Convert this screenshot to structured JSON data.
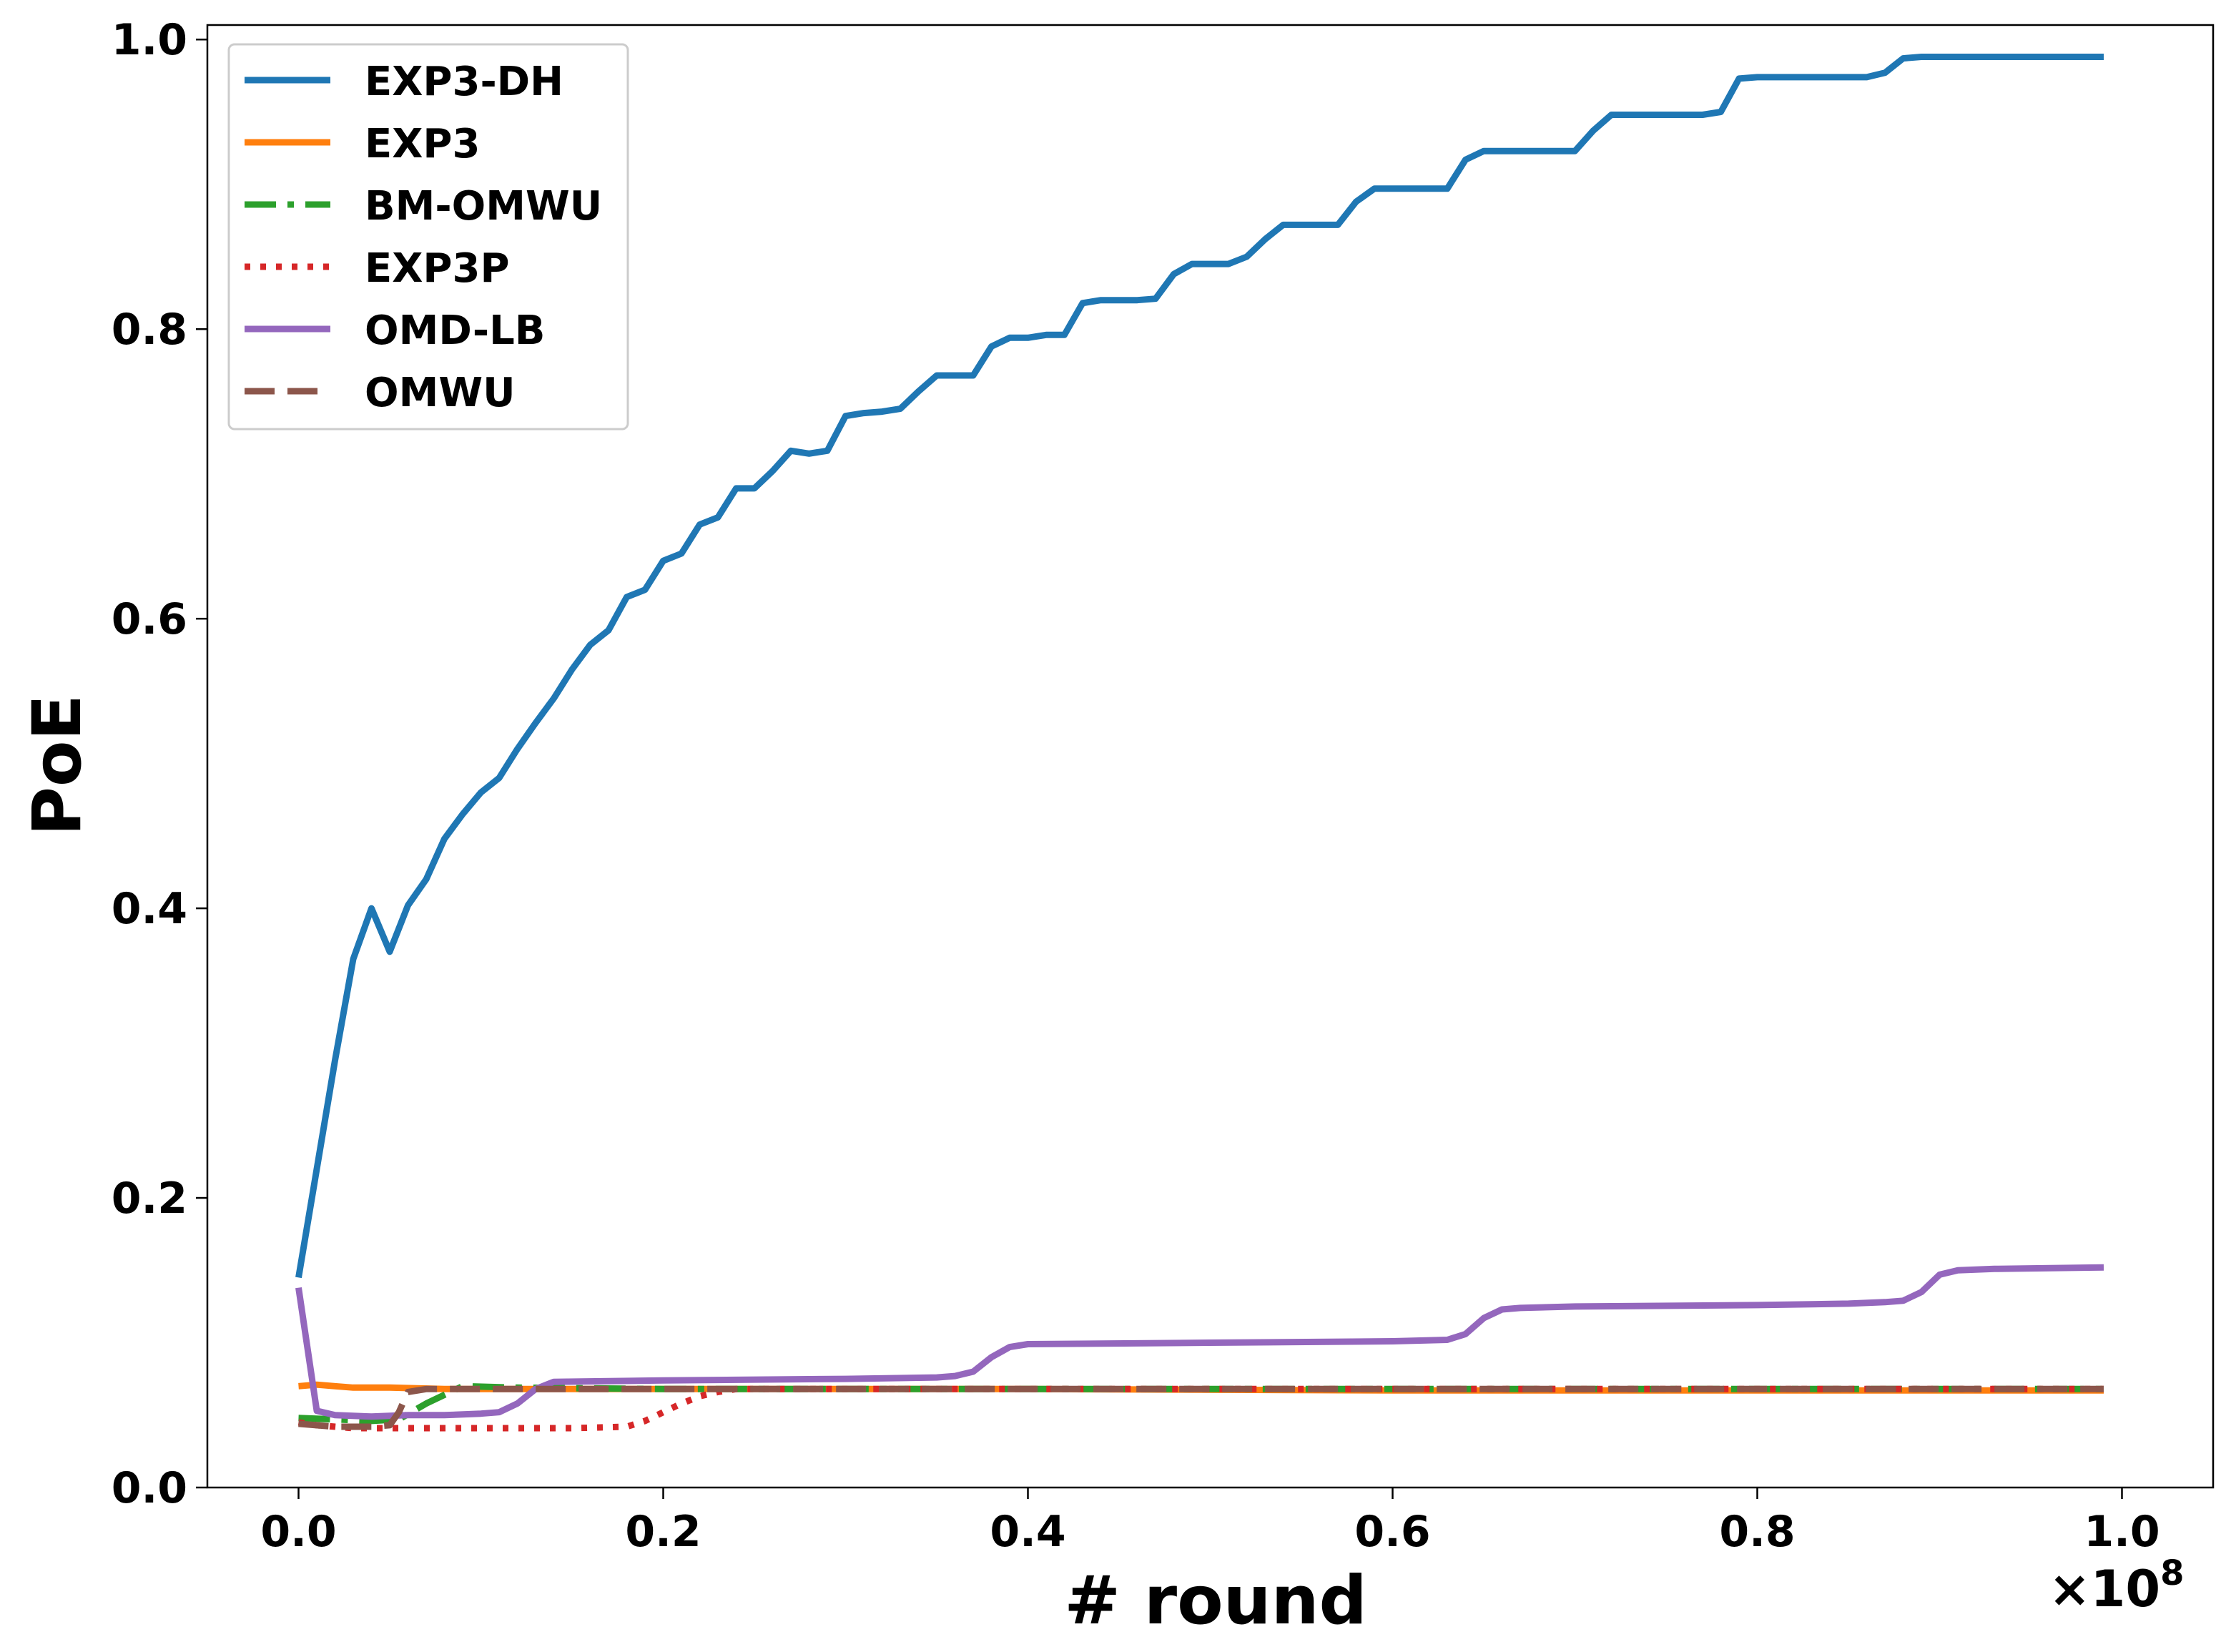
{
  "chart_data": {
    "type": "line",
    "title": "",
    "xlabel": "# round",
    "ylabel": "PoE",
    "x_offset_label": "×10",
    "x_offset_exponent": "8",
    "xlim": [
      -0.05,
      1.05
    ],
    "ylim": [
      0.0,
      1.01
    ],
    "x_ticks": [
      0.0,
      0.2,
      0.4,
      0.6,
      0.8,
      1.0
    ],
    "x_tick_labels": [
      "0.0",
      "0.2",
      "0.4",
      "0.6",
      "0.8",
      "1.0"
    ],
    "y_ticks": [
      0.0,
      0.2,
      0.4,
      0.6,
      0.8,
      1.0
    ],
    "y_tick_labels": [
      "0.0",
      "0.2",
      "0.4",
      "0.6",
      "0.8",
      "1.0"
    ],
    "grid": false,
    "legend_position": "top-left",
    "series": [
      {
        "name": "EXP3-DH",
        "color": "#1f77b4",
        "dash": "solid",
        "points": [
          [
            0.0,
            0.145
          ],
          [
            0.01,
            0.22
          ],
          [
            0.02,
            0.295
          ],
          [
            0.03,
            0.365
          ],
          [
            0.04,
            0.4
          ],
          [
            0.05,
            0.37
          ],
          [
            0.06,
            0.402
          ],
          [
            0.07,
            0.42
          ],
          [
            0.08,
            0.448
          ],
          [
            0.09,
            0.465
          ],
          [
            0.1,
            0.48
          ],
          [
            0.11,
            0.49
          ],
          [
            0.12,
            0.51
          ],
          [
            0.13,
            0.528
          ],
          [
            0.14,
            0.545
          ],
          [
            0.15,
            0.565
          ],
          [
            0.16,
            0.582
          ],
          [
            0.17,
            0.592
          ],
          [
            0.18,
            0.615
          ],
          [
            0.19,
            0.62
          ],
          [
            0.2,
            0.64
          ],
          [
            0.21,
            0.645
          ],
          [
            0.22,
            0.665
          ],
          [
            0.23,
            0.67
          ],
          [
            0.24,
            0.69
          ],
          [
            0.25,
            0.69
          ],
          [
            0.26,
            0.702
          ],
          [
            0.27,
            0.716
          ],
          [
            0.28,
            0.714
          ],
          [
            0.29,
            0.716
          ],
          [
            0.3,
            0.74
          ],
          [
            0.31,
            0.742
          ],
          [
            0.32,
            0.743
          ],
          [
            0.33,
            0.745
          ],
          [
            0.34,
            0.757
          ],
          [
            0.35,
            0.768
          ],
          [
            0.36,
            0.768
          ],
          [
            0.37,
            0.768
          ],
          [
            0.38,
            0.788
          ],
          [
            0.39,
            0.794
          ],
          [
            0.4,
            0.794
          ],
          [
            0.41,
            0.796
          ],
          [
            0.42,
            0.796
          ],
          [
            0.43,
            0.818
          ],
          [
            0.44,
            0.82
          ],
          [
            0.45,
            0.82
          ],
          [
            0.46,
            0.82
          ],
          [
            0.47,
            0.821
          ],
          [
            0.48,
            0.838
          ],
          [
            0.49,
            0.845
          ],
          [
            0.5,
            0.845
          ],
          [
            0.51,
            0.845
          ],
          [
            0.52,
            0.85
          ],
          [
            0.53,
            0.862
          ],
          [
            0.54,
            0.872
          ],
          [
            0.55,
            0.872
          ],
          [
            0.56,
            0.872
          ],
          [
            0.57,
            0.872
          ],
          [
            0.58,
            0.888
          ],
          [
            0.59,
            0.897
          ],
          [
            0.6,
            0.897
          ],
          [
            0.61,
            0.897
          ],
          [
            0.62,
            0.897
          ],
          [
            0.63,
            0.897
          ],
          [
            0.64,
            0.917
          ],
          [
            0.65,
            0.923
          ],
          [
            0.66,
            0.923
          ],
          [
            0.67,
            0.923
          ],
          [
            0.68,
            0.923
          ],
          [
            0.69,
            0.923
          ],
          [
            0.7,
            0.923
          ],
          [
            0.71,
            0.937
          ],
          [
            0.72,
            0.948
          ],
          [
            0.73,
            0.948
          ],
          [
            0.74,
            0.948
          ],
          [
            0.75,
            0.948
          ],
          [
            0.76,
            0.948
          ],
          [
            0.77,
            0.948
          ],
          [
            0.78,
            0.95
          ],
          [
            0.79,
            0.973
          ],
          [
            0.8,
            0.974
          ],
          [
            0.81,
            0.974
          ],
          [
            0.82,
            0.974
          ],
          [
            0.83,
            0.974
          ],
          [
            0.84,
            0.974
          ],
          [
            0.85,
            0.974
          ],
          [
            0.86,
            0.974
          ],
          [
            0.87,
            0.977
          ],
          [
            0.88,
            0.987
          ],
          [
            0.89,
            0.988
          ],
          [
            0.9,
            0.988
          ],
          [
            0.93,
            0.988
          ],
          [
            0.96,
            0.988
          ],
          [
            0.99,
            0.988
          ]
        ]
      },
      {
        "name": "EXP3",
        "color": "#ff7f0e",
        "dash": "solid",
        "points": [
          [
            0.0,
            0.07
          ],
          [
            0.01,
            0.071
          ],
          [
            0.02,
            0.07
          ],
          [
            0.03,
            0.069
          ],
          [
            0.05,
            0.069
          ],
          [
            0.08,
            0.068
          ],
          [
            0.12,
            0.068
          ],
          [
            0.2,
            0.068
          ],
          [
            0.4,
            0.068
          ],
          [
            0.6,
            0.067
          ],
          [
            0.8,
            0.067
          ],
          [
            0.99,
            0.067
          ]
        ]
      },
      {
        "name": "BM-OMWU",
        "color": "#2ca02c",
        "dash": "dashdot",
        "points": [
          [
            0.0,
            0.048
          ],
          [
            0.02,
            0.047
          ],
          [
            0.04,
            0.046
          ],
          [
            0.055,
            0.047
          ],
          [
            0.07,
            0.058
          ],
          [
            0.09,
            0.07
          ],
          [
            0.12,
            0.069
          ],
          [
            0.2,
            0.068
          ],
          [
            0.4,
            0.068
          ],
          [
            0.6,
            0.068
          ],
          [
            0.8,
            0.068
          ],
          [
            0.99,
            0.068
          ]
        ]
      },
      {
        "name": "EXP3P",
        "color": "#d62728",
        "dash": "dotted",
        "points": [
          [
            0.0,
            0.045
          ],
          [
            0.01,
            0.043
          ],
          [
            0.03,
            0.041
          ],
          [
            0.05,
            0.041
          ],
          [
            0.1,
            0.041
          ],
          [
            0.15,
            0.041
          ],
          [
            0.18,
            0.042
          ],
          [
            0.19,
            0.046
          ],
          [
            0.2,
            0.052
          ],
          [
            0.21,
            0.058
          ],
          [
            0.22,
            0.063
          ],
          [
            0.23,
            0.066
          ],
          [
            0.24,
            0.068
          ],
          [
            0.3,
            0.068
          ],
          [
            0.5,
            0.068
          ],
          [
            0.7,
            0.068
          ],
          [
            0.9,
            0.068
          ],
          [
            0.99,
            0.068
          ]
        ]
      },
      {
        "name": "OMD-LB",
        "color": "#9467bd",
        "dash": "solid",
        "points": [
          [
            0.0,
            0.138
          ],
          [
            0.01,
            0.053
          ],
          [
            0.02,
            0.05
          ],
          [
            0.04,
            0.049
          ],
          [
            0.06,
            0.05
          ],
          [
            0.08,
            0.05
          ],
          [
            0.1,
            0.051
          ],
          [
            0.11,
            0.052
          ],
          [
            0.12,
            0.058
          ],
          [
            0.13,
            0.068
          ],
          [
            0.14,
            0.073
          ],
          [
            0.2,
            0.074
          ],
          [
            0.3,
            0.075
          ],
          [
            0.35,
            0.076
          ],
          [
            0.36,
            0.077
          ],
          [
            0.37,
            0.08
          ],
          [
            0.38,
            0.09
          ],
          [
            0.39,
            0.097
          ],
          [
            0.4,
            0.099
          ],
          [
            0.5,
            0.1
          ],
          [
            0.6,
            0.101
          ],
          [
            0.63,
            0.102
          ],
          [
            0.64,
            0.106
          ],
          [
            0.65,
            0.117
          ],
          [
            0.66,
            0.123
          ],
          [
            0.67,
            0.124
          ],
          [
            0.7,
            0.125
          ],
          [
            0.8,
            0.126
          ],
          [
            0.85,
            0.127
          ],
          [
            0.87,
            0.128
          ],
          [
            0.88,
            0.129
          ],
          [
            0.89,
            0.135
          ],
          [
            0.9,
            0.147
          ],
          [
            0.91,
            0.15
          ],
          [
            0.93,
            0.151
          ],
          [
            0.99,
            0.152
          ]
        ]
      },
      {
        "name": "OMWU",
        "color": "#8c564b",
        "dash": "dashed",
        "points": [
          [
            0.0,
            0.044
          ],
          [
            0.02,
            0.042
          ],
          [
            0.04,
            0.042
          ],
          [
            0.05,
            0.043
          ],
          [
            0.055,
            0.052
          ],
          [
            0.06,
            0.066
          ],
          [
            0.07,
            0.068
          ],
          [
            0.1,
            0.068
          ],
          [
            0.3,
            0.068
          ],
          [
            0.5,
            0.068
          ],
          [
            0.7,
            0.068
          ],
          [
            0.9,
            0.068
          ],
          [
            0.99,
            0.068
          ]
        ]
      }
    ]
  }
}
